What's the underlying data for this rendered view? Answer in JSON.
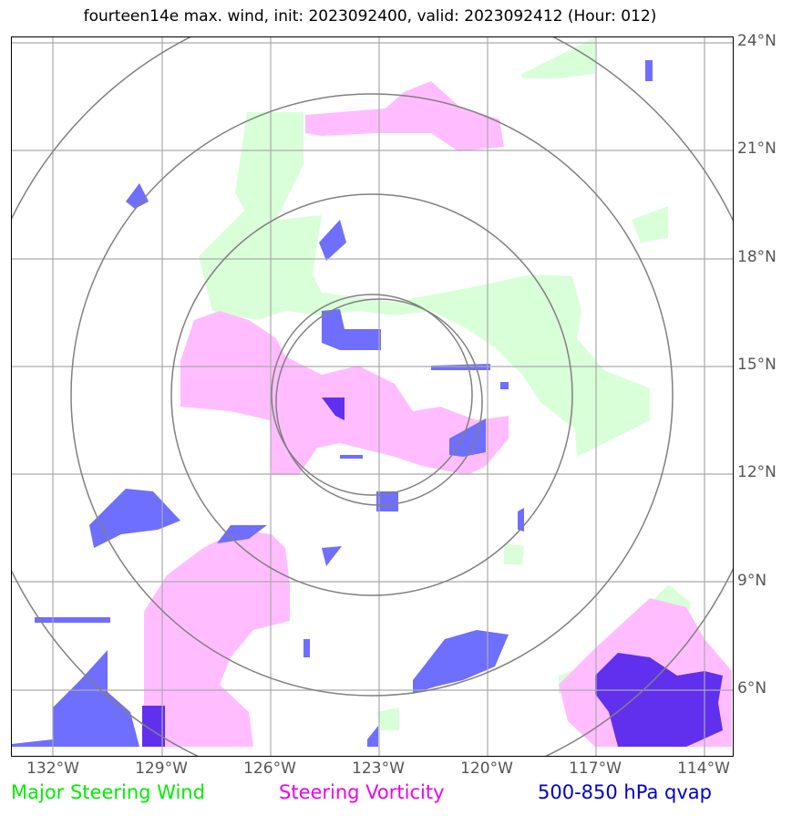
{
  "title": "fourteen14e max. wind, init: 2023092400, valid: 2023092412 (Hour: 012)",
  "map": {
    "lon_range": [
      -133,
      -113.5
    ],
    "lat_range": [
      4.2,
      24.2
    ],
    "center": {
      "lon": -123,
      "lat": 14.3
    },
    "range_rings": 4
  },
  "lat_labels": [
    "24°N",
    "21°N",
    "18°N",
    "15°N",
    "12°N",
    "9°N",
    "6°N"
  ],
  "lon_labels": [
    "132°W",
    "129°W",
    "126°W",
    "123°W",
    "120°W",
    "117°W",
    "114°W"
  ],
  "legend": [
    {
      "label": "Major Steering Wind",
      "color": "#00ee00"
    },
    {
      "label": "Steering Vorticity",
      "color": "#ee00ee"
    },
    {
      "label": "500-850 hPa qvap",
      "color": "#0000cc"
    }
  ],
  "colors": {
    "wind": "#ccffcc",
    "vorticity": "#ffb0ff",
    "qvap": "#5a5aff",
    "qvap_dark": "#6a2aff",
    "grid": "#999999",
    "rings": "#808080"
  }
}
